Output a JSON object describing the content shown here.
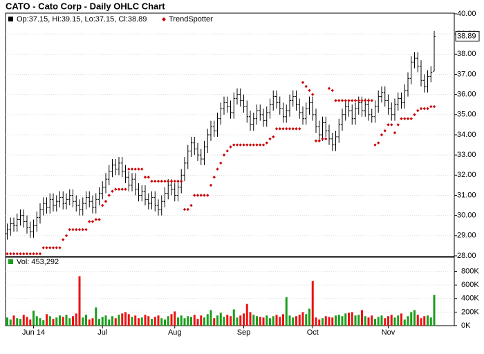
{
  "chart_data": {
    "type": "ohlc",
    "title": "CATO - Cato Corp - Daily OHLC Chart",
    "legend_text": "Op:37.15, Hi:39.15, Lo:37.15, Cl:38.89",
    "color": "#000000",
    "grid": true,
    "ylim": [
      28,
      40
    ],
    "yticks": [
      {
        "value": 28,
        "label": "28.00"
      },
      {
        "value": 29,
        "label": "29.00"
      },
      {
        "value": 30,
        "label": "30.00"
      },
      {
        "value": 31,
        "label": "31.00"
      },
      {
        "value": 32,
        "label": "32.00"
      },
      {
        "value": 33,
        "label": "33.00"
      },
      {
        "value": 34,
        "label": "34.00"
      },
      {
        "value": 35,
        "label": "35.00"
      },
      {
        "value": 36,
        "label": "36.00"
      },
      {
        "value": 37,
        "label": "37.00"
      },
      {
        "value": 38,
        "label": "38.00"
      },
      {
        "value": 39,
        "label": "39.00"
      },
      {
        "value": 40,
        "label": "40.00"
      }
    ],
    "categories": [
      null,
      null,
      null,
      null,
      null,
      null,
      null,
      null,
      "Jun 14",
      null,
      null,
      null,
      null,
      null,
      null,
      null,
      null,
      null,
      null,
      null,
      null,
      null,
      null,
      null,
      null,
      null,
      null,
      null,
      null,
      "Jul",
      null,
      null,
      null,
      null,
      null,
      null,
      null,
      null,
      null,
      null,
      null,
      null,
      null,
      null,
      null,
      null,
      null,
      null,
      null,
      null,
      null,
      "Aug",
      null,
      null,
      null,
      null,
      null,
      null,
      null,
      null,
      null,
      null,
      null,
      null,
      null,
      null,
      null,
      null,
      null,
      null,
      null,
      null,
      "Sep",
      null,
      null,
      null,
      null,
      null,
      null,
      null,
      null,
      null,
      null,
      null,
      null,
      null,
      null,
      null,
      null,
      null,
      null,
      null,
      null,
      "Oct",
      null,
      null,
      null,
      null,
      null,
      null,
      null,
      null,
      null,
      null,
      null,
      null,
      null,
      null,
      null,
      null,
      null,
      null,
      null,
      null,
      null,
      null,
      "Nov",
      null,
      null,
      null,
      null,
      null,
      null,
      null,
      null,
      null,
      null,
      null,
      null,
      null,
      null
    ],
    "open": [
      29.1,
      29.3,
      29.6,
      29.5,
      29.8,
      30.0,
      29.7,
      29.4,
      29.2,
      29.5,
      29.9,
      30.3,
      30.6,
      30.4,
      30.8,
      30.5,
      30.7,
      30.9,
      30.6,
      30.8,
      31.0,
      30.7,
      30.5,
      30.3,
      30.6,
      30.9,
      30.7,
      30.4,
      30.8,
      31.1,
      31.4,
      31.8,
      32.2,
      32.5,
      32.3,
      32.6,
      32.2,
      31.9,
      31.5,
      31.8,
      31.3,
      31.0,
      31.2,
      30.8,
      30.6,
      30.9,
      30.5,
      30.3,
      30.7,
      31.1,
      31.5,
      31.3,
      31.0,
      31.4,
      32.0,
      32.6,
      33.2,
      33.6,
      33.3,
      33.0,
      32.8,
      33.4,
      34.0,
      34.4,
      34.2,
      34.8,
      35.3,
      35.6,
      35.4,
      35.1,
      35.8,
      36.0,
      35.7,
      35.4,
      34.9,
      34.5,
      34.8,
      35.2,
      35.0,
      34.7,
      35.1,
      35.5,
      35.9,
      35.6,
      35.3,
      34.9,
      35.2,
      35.7,
      35.9,
      35.5,
      35.1,
      34.8,
      35.3,
      35.6,
      35.0,
      34.4,
      34.0,
      34.6,
      34.2,
      33.8,
      33.5,
      33.9,
      34.5,
      35.0,
      35.4,
      35.2,
      34.8,
      35.3,
      35.6,
      35.2,
      35.5,
      35.0,
      34.9,
      35.4,
      35.9,
      36.1,
      35.7,
      35.3,
      35.0,
      35.5,
      35.8,
      35.6,
      36.2,
      36.8,
      37.6,
      37.8,
      37.4,
      36.7,
      36.4,
      36.9,
      37.15
    ],
    "high": [
      29.6,
      29.9,
      29.9,
      30.1,
      30.3,
      30.3,
      30.0,
      29.7,
      29.8,
      30.2,
      30.6,
      30.9,
      30.9,
      31.1,
      31.1,
      31.0,
      31.2,
      31.2,
      31.1,
      31.3,
      31.3,
      31.0,
      30.8,
      30.9,
      31.2,
      31.2,
      31.0,
      31.1,
      31.4,
      31.7,
      32.1,
      32.5,
      32.8,
      32.8,
      32.9,
      32.9,
      32.5,
      32.2,
      32.1,
      32.1,
      31.6,
      31.5,
      31.5,
      31.1,
      31.2,
      31.2,
      30.8,
      31.0,
      31.4,
      31.8,
      31.8,
      31.6,
      31.7,
      32.3,
      32.9,
      33.5,
      33.9,
      33.9,
      33.6,
      33.3,
      33.7,
      34.3,
      34.7,
      34.7,
      35.1,
      35.6,
      35.9,
      35.9,
      35.7,
      36.1,
      36.3,
      36.3,
      36.0,
      35.7,
      35.2,
      35.1,
      35.5,
      35.5,
      35.3,
      35.4,
      35.8,
      36.2,
      36.2,
      35.9,
      35.6,
      35.5,
      36.0,
      36.2,
      36.2,
      35.8,
      35.4,
      35.6,
      35.9,
      35.9,
      35.3,
      34.7,
      34.9,
      34.9,
      34.5,
      34.1,
      34.2,
      34.8,
      35.3,
      35.7,
      35.7,
      35.5,
      35.6,
      35.9,
      35.9,
      35.8,
      35.8,
      35.3,
      35.7,
      36.2,
      36.4,
      36.4,
      36.0,
      35.6,
      35.8,
      36.1,
      36.1,
      36.5,
      37.1,
      37.9,
      38.1,
      38.1,
      37.7,
      37.0,
      37.2,
      37.4,
      39.15
    ],
    "low": [
      28.8,
      29.0,
      29.2,
      29.2,
      29.5,
      29.4,
      29.1,
      28.9,
      28.9,
      29.2,
      29.6,
      30.0,
      30.1,
      30.1,
      30.2,
      30.2,
      30.4,
      30.3,
      30.3,
      30.5,
      30.4,
      30.2,
      30.0,
      30.0,
      30.3,
      30.4,
      30.1,
      30.1,
      30.5,
      30.8,
      31.1,
      31.5,
      31.9,
      32.0,
      32.0,
      31.9,
      31.6,
      31.2,
      31.2,
      31.0,
      30.7,
      30.7,
      30.5,
      30.3,
      30.3,
      30.2,
      30.0,
      30.0,
      30.4,
      30.8,
      31.0,
      30.7,
      30.7,
      31.1,
      31.7,
      32.3,
      32.9,
      33.0,
      32.7,
      32.5,
      32.5,
      33.1,
      33.7,
      33.9,
      33.9,
      34.5,
      35.0,
      35.1,
      34.8,
      34.8,
      35.5,
      35.4,
      35.1,
      34.6,
      34.2,
      34.2,
      34.5,
      34.7,
      34.4,
      34.4,
      34.8,
      35.2,
      35.3,
      35.0,
      34.6,
      34.6,
      34.9,
      35.4,
      35.2,
      34.8,
      34.5,
      34.5,
      35.0,
      34.7,
      34.1,
      33.7,
      33.7,
      33.9,
      33.5,
      33.2,
      33.2,
      33.6,
      34.2,
      34.7,
      34.9,
      34.5,
      34.5,
      35.0,
      34.9,
      34.9,
      34.7,
      34.6,
      34.6,
      35.1,
      35.6,
      35.4,
      35.0,
      34.7,
      34.7,
      35.2,
      35.3,
      35.3,
      35.9,
      36.5,
      37.3,
      37.1,
      36.4,
      36.1,
      36.1,
      36.6,
      37.15
    ],
    "close": [
      29.3,
      29.6,
      29.5,
      29.8,
      30.0,
      29.7,
      29.4,
      29.2,
      29.5,
      29.9,
      30.3,
      30.6,
      30.4,
      30.8,
      30.5,
      30.7,
      30.9,
      30.6,
      30.8,
      31.0,
      30.7,
      30.5,
      30.3,
      30.6,
      30.9,
      30.7,
      30.4,
      30.8,
      31.1,
      31.4,
      31.8,
      32.2,
      32.5,
      32.3,
      32.6,
      32.2,
      31.9,
      31.5,
      31.8,
      31.3,
      31.0,
      31.2,
      30.8,
      30.6,
      30.9,
      30.5,
      30.3,
      30.7,
      31.1,
      31.5,
      31.3,
      31.0,
      31.4,
      32.0,
      32.6,
      33.2,
      33.6,
      33.3,
      33.0,
      32.8,
      33.4,
      34.0,
      34.4,
      34.2,
      34.8,
      35.3,
      35.6,
      35.4,
      35.1,
      35.8,
      36.0,
      35.7,
      35.4,
      34.9,
      34.5,
      34.8,
      35.2,
      35.0,
      34.7,
      35.1,
      35.5,
      35.9,
      35.6,
      35.3,
      34.9,
      35.2,
      35.7,
      35.9,
      35.5,
      35.1,
      34.8,
      35.3,
      35.6,
      35.0,
      34.4,
      34.0,
      34.6,
      34.2,
      33.8,
      33.5,
      33.9,
      34.5,
      35.0,
      35.4,
      35.2,
      34.8,
      35.3,
      35.6,
      35.2,
      35.5,
      35.0,
      34.9,
      35.4,
      35.9,
      36.1,
      35.7,
      35.3,
      35.0,
      35.5,
      35.8,
      35.6,
      36.2,
      36.8,
      37.6,
      37.8,
      37.4,
      36.7,
      36.4,
      36.9,
      37.1,
      38.89
    ],
    "trend": {
      "name": "TrendSpotter",
      "color": "#cc0000",
      "values": [
        28.1,
        28.1,
        28.1,
        28.1,
        28.1,
        28.1,
        28.1,
        28.1,
        28.1,
        28.1,
        28.1,
        28.4,
        28.4,
        28.4,
        28.4,
        28.4,
        28.4,
        28.8,
        29.0,
        29.3,
        29.3,
        29.3,
        29.3,
        29.3,
        29.3,
        29.7,
        29.7,
        29.8,
        29.8,
        30.5,
        30.7,
        31.0,
        31.2,
        31.3,
        31.3,
        31.3,
        31.3,
        32.3,
        32.3,
        32.3,
        32.3,
        32.3,
        31.9,
        31.9,
        31.7,
        31.7,
        31.7,
        31.7,
        31.7,
        31.7,
        31.7,
        31.7,
        31.7,
        31.7,
        30.3,
        30.3,
        30.5,
        31.0,
        31.0,
        31.0,
        31.0,
        31.0,
        31.5,
        31.9,
        32.3,
        32.6,
        33.0,
        33.2,
        33.4,
        33.5,
        33.5,
        33.5,
        33.5,
        33.5,
        33.5,
        33.5,
        33.5,
        33.5,
        33.5,
        33.6,
        33.8,
        33.9,
        34.3,
        34.3,
        34.3,
        34.3,
        34.3,
        34.3,
        34.3,
        34.3,
        36.6,
        36.4,
        36.2,
        36.0,
        33.7,
        33.7,
        33.8,
        33.8,
        36.3,
        36.2,
        35.7,
        35.7,
        35.7,
        35.7,
        35.7,
        35.7,
        35.7,
        35.7,
        35.7,
        35.7,
        35.7,
        35.7,
        33.5,
        33.6,
        34.0,
        34.2,
        34.5,
        34.5,
        34.1,
        34.5,
        34.8,
        34.8,
        34.8,
        34.8,
        35.0,
        35.2,
        35.3,
        35.3,
        35.3,
        35.4,
        35.4
      ]
    },
    "volume": {
      "label": "Vol: 453,292",
      "up_color": "#1a9e1a",
      "down_color": "#ee1111",
      "ylim": [
        0,
        1000000
      ],
      "yticks": [
        {
          "value": 0,
          "label": "0K"
        },
        {
          "value": 200000,
          "label": "200K"
        },
        {
          "value": 400000,
          "label": "400K"
        },
        {
          "value": 600000,
          "label": "600K"
        },
        {
          "value": 800000,
          "label": "800K"
        }
      ],
      "values": [
        120000,
        90000,
        150000,
        110000,
        100000,
        160000,
        130000,
        90000,
        220000,
        140000,
        110000,
        80000,
        170000,
        140000,
        100000,
        120000,
        150000,
        130000,
        160000,
        110000,
        140000,
        180000,
        730000,
        120000,
        160000,
        90000,
        110000,
        270000,
        100000,
        130000,
        150000,
        90000,
        140000,
        110000,
        160000,
        180000,
        200000,
        170000,
        130000,
        150000,
        110000,
        120000,
        160000,
        140000,
        100000,
        130000,
        150000,
        110000,
        90000,
        140000,
        170000,
        210000,
        120000,
        150000,
        110000,
        140000,
        130000,
        160000,
        100000,
        150000,
        120000,
        170000,
        230000,
        110000,
        150000,
        190000,
        130000,
        160000,
        140000,
        240000,
        120000,
        150000,
        180000,
        320000,
        200000,
        160000,
        140000,
        130000,
        120000,
        150000,
        110000,
        140000,
        160000,
        130000,
        170000,
        420000,
        150000,
        120000,
        140000,
        160000,
        200000,
        170000,
        250000,
        660000,
        120000,
        90000,
        110000,
        140000,
        130000,
        120000,
        150000,
        160000,
        140000,
        180000,
        190000,
        200000,
        150000,
        160000,
        230000,
        140000,
        120000,
        150000,
        100000,
        130000,
        150000,
        110000,
        140000,
        160000,
        120000,
        150000,
        180000,
        90000,
        140000,
        200000,
        230000,
        160000,
        110000,
        140000,
        150000,
        120000,
        453292
      ]
    }
  }
}
